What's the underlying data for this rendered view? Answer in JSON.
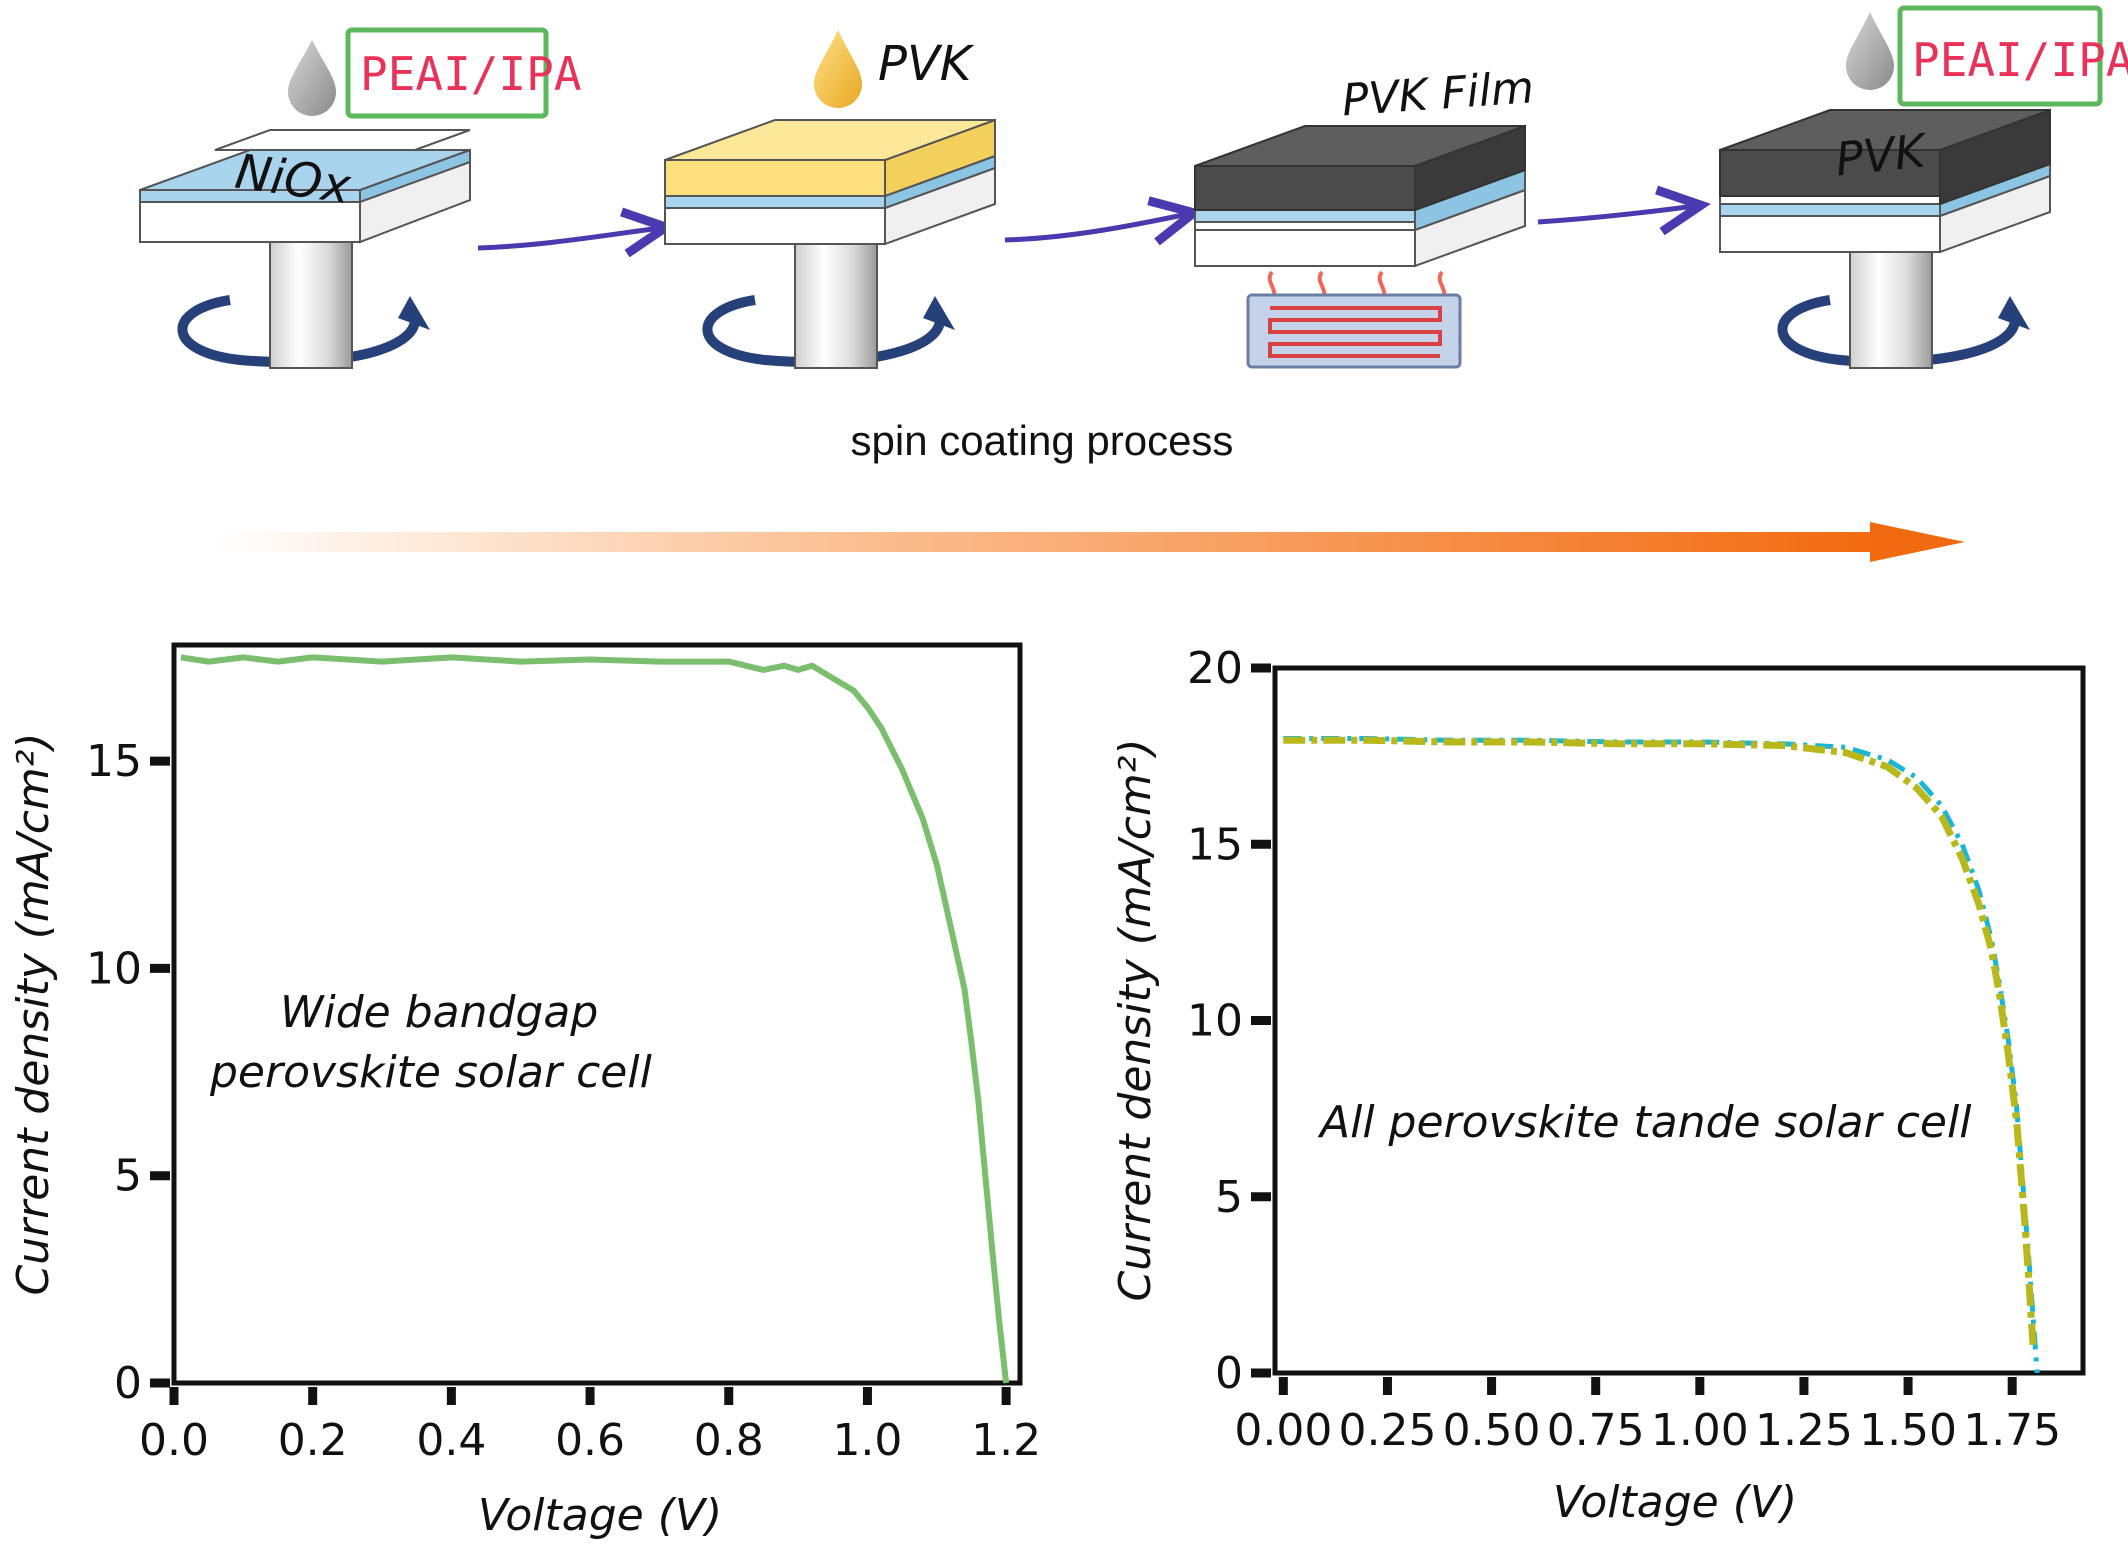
{
  "process": {
    "caption": "spin coating process",
    "step1": {
      "label": "PEAI/IPA",
      "substrate": "NiOx"
    },
    "step2": {
      "label": "PVK"
    },
    "step3": {
      "label": "PVK Film"
    },
    "step4": {
      "label": "PEAI/IPA",
      "top": "PVK"
    }
  },
  "colors": {
    "nio": "#a8d4ee",
    "pvk_precursor": "#fbe07d",
    "pvk_film": "#4b4b4b",
    "arrow": "#4a3ab0",
    "green_curve": "#7bbf6e",
    "tandem_yellow": "#b8b81c",
    "tandem_cyan": "#1ab6d6",
    "orange": "#f26a10",
    "label_red": "#e8325a",
    "box_green": "#5cb85c"
  },
  "chart_data": [
    {
      "type": "line",
      "xlabel": "Voltage (V)",
      "ylabel": "Current density (mA/cm²)",
      "xlim": [
        0,
        1.22
      ],
      "ylim": [
        0,
        17.8
      ],
      "xticks": [
        "0.0",
        "0.2",
        "0.4",
        "0.6",
        "0.8",
        "1.0",
        "1.2"
      ],
      "yticks": [
        "0",
        "5",
        "10",
        "15"
      ],
      "annotation": [
        "Wide bandgap",
        "perovskite solar cell"
      ],
      "series": [
        {
          "color": "#7bbf6e",
          "x": [
            0.01,
            0.05,
            0.1,
            0.15,
            0.2,
            0.3,
            0.4,
            0.5,
            0.6,
            0.7,
            0.8,
            0.85,
            0.88,
            0.9,
            0.92,
            0.95,
            0.98,
            1.0,
            1.02,
            1.05,
            1.08,
            1.1,
            1.12,
            1.14,
            1.15,
            1.16,
            1.17,
            1.18,
            1.19,
            1.2
          ],
          "y": [
            17.5,
            17.4,
            17.5,
            17.4,
            17.5,
            17.4,
            17.5,
            17.4,
            17.45,
            17.4,
            17.4,
            17.2,
            17.3,
            17.2,
            17.3,
            17.0,
            16.7,
            16.3,
            15.8,
            14.8,
            13.6,
            12.5,
            11.0,
            9.5,
            8.2,
            6.8,
            5.0,
            3.2,
            1.5,
            0.0
          ]
        }
      ]
    },
    {
      "type": "line",
      "xlabel": "Voltage (V)",
      "ylabel": "Current density (mA/cm²)",
      "xlim": [
        -0.02,
        1.92
      ],
      "ylim": [
        0,
        20
      ],
      "xticks": [
        "0.00",
        "0.25",
        "0.50",
        "0.75",
        "1.00",
        "1.25",
        "1.50",
        "1.75"
      ],
      "yticks": [
        "0",
        "5",
        "10",
        "15",
        "20"
      ],
      "annotation": [
        "All perovskite tande solar cell"
      ],
      "series": [
        {
          "color": "#1ab6d6",
          "x": [
            0.0,
            0.2,
            0.4,
            0.6,
            0.8,
            1.0,
            1.2,
            1.35,
            1.45,
            1.52,
            1.58,
            1.63,
            1.67,
            1.7,
            1.72,
            1.74,
            1.76,
            1.77,
            1.78,
            1.79,
            1.8,
            1.81
          ],
          "y": [
            18.0,
            18.0,
            17.95,
            17.95,
            17.9,
            17.9,
            17.85,
            17.75,
            17.4,
            16.9,
            16.1,
            15.0,
            13.7,
            12.3,
            11.0,
            9.5,
            7.6,
            6.2,
            4.7,
            3.2,
            1.6,
            0.0
          ]
        },
        {
          "color": "#b8b81c",
          "x": [
            0.0,
            0.2,
            0.4,
            0.6,
            0.8,
            1.0,
            1.2,
            1.35,
            1.45,
            1.52,
            1.58,
            1.63,
            1.67,
            1.7,
            1.72,
            1.74,
            1.76,
            1.77,
            1.78,
            1.79,
            1.8
          ],
          "y": [
            17.95,
            17.95,
            17.9,
            17.9,
            17.85,
            17.85,
            17.8,
            17.6,
            17.2,
            16.6,
            15.8,
            14.6,
            13.3,
            12.0,
            10.7,
            9.1,
            7.2,
            5.8,
            4.3,
            2.6,
            0.8
          ]
        }
      ]
    }
  ]
}
